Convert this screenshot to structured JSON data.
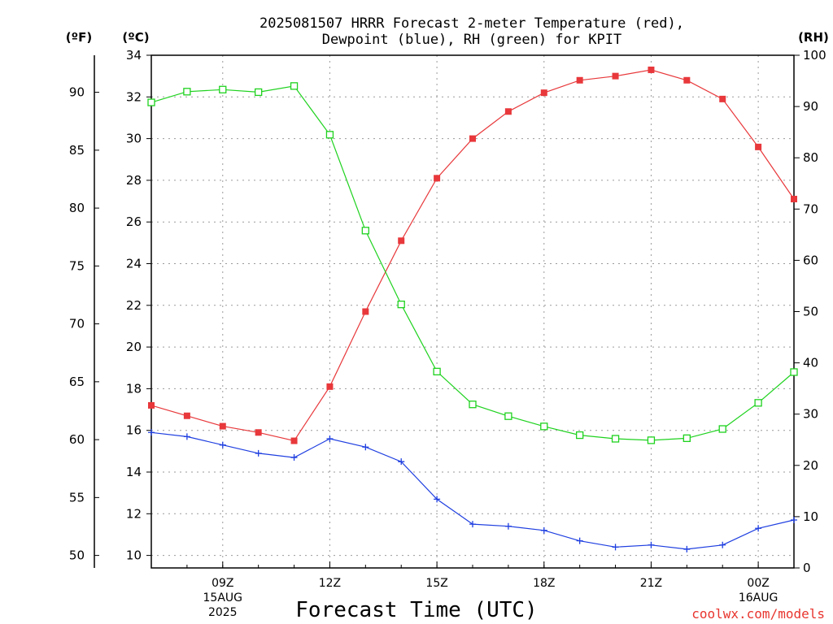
{
  "chart_data": {
    "type": "line",
    "title_lines": [
      "2025081507 HRRR Forecast 2-meter Temperature (red),",
      "Dewpoint (blue), RH (green) for KPIT"
    ],
    "units": {
      "fahrenheit": "(ºF)",
      "celsius": "(ºC)",
      "rh": "(RH)"
    },
    "xlabel": "Forecast Time (UTC)",
    "credit": "coolwx.com/models",
    "x_hours": [
      7,
      8,
      9,
      10,
      11,
      12,
      13,
      14,
      15,
      16,
      17,
      18,
      19,
      20,
      21,
      22,
      23,
      24,
      25
    ],
    "xlim": [
      7,
      25
    ],
    "x_ticks": [
      {
        "x": 9,
        "lines": [
          "09Z",
          "15AUG",
          "2025"
        ]
      },
      {
        "x": 12,
        "lines": [
          "12Z"
        ]
      },
      {
        "x": 15,
        "lines": [
          "15Z"
        ]
      },
      {
        "x": 18,
        "lines": [
          "18Z"
        ]
      },
      {
        "x": 21,
        "lines": [
          "21Z"
        ]
      },
      {
        "x": 24,
        "lines": [
          "00Z",
          "16AUG"
        ]
      }
    ],
    "y_celsius": {
      "lim": [
        9.4,
        34
      ],
      "ticks": [
        10,
        12,
        14,
        16,
        18,
        20,
        22,
        24,
        26,
        28,
        30,
        32,
        34
      ]
    },
    "y_fahrenheit": {
      "ticks": [
        50,
        55,
        60,
        65,
        70,
        75,
        80,
        85,
        90
      ]
    },
    "y_rh": {
      "lim": [
        0,
        100
      ],
      "ticks": [
        0,
        10,
        20,
        30,
        40,
        50,
        60,
        70,
        80,
        90,
        100
      ]
    },
    "grid": true,
    "series": [
      {
        "name": "Temperature",
        "axis": "celsius",
        "color": "#e8383b",
        "marker": "filled-square",
        "values": [
          17.2,
          16.7,
          16.2,
          15.9,
          15.5,
          18.1,
          21.7,
          25.1,
          28.1,
          30.0,
          31.3,
          32.2,
          32.8,
          33.0,
          33.3,
          32.8,
          31.9,
          29.6,
          27.1
        ]
      },
      {
        "name": "Dewpoint",
        "axis": "celsius",
        "color": "#1f3fe0",
        "marker": "plus",
        "values": [
          15.9,
          15.7,
          15.3,
          14.9,
          14.7,
          15.6,
          15.2,
          14.5,
          12.7,
          11.5,
          11.4,
          11.2,
          10.7,
          10.4,
          10.5,
          10.3,
          10.5,
          11.3,
          11.7
        ]
      },
      {
        "name": "RH",
        "axis": "rh",
        "color": "#1ed21e",
        "marker": "open-square",
        "values": [
          90.8,
          92.9,
          93.3,
          92.8,
          94.0,
          84.5,
          65.8,
          51.4,
          38.3,
          31.9,
          29.6,
          27.6,
          25.9,
          25.2,
          24.9,
          25.3,
          27.1,
          32.2,
          38.2
        ]
      }
    ]
  }
}
